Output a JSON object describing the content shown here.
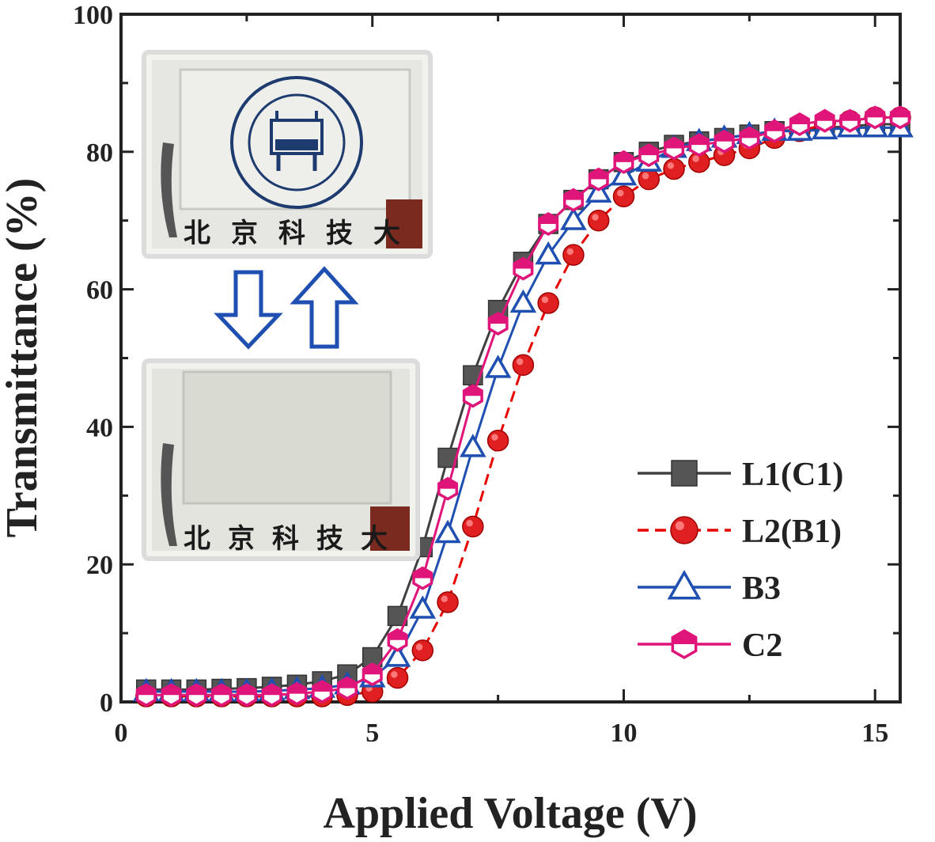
{
  "chart_data": {
    "type": "line",
    "xlabel": "Applied Voltage (V)",
    "ylabel": "Transmittance (%)",
    "xlim": [
      0,
      15.5
    ],
    "ylim": [
      0,
      100
    ],
    "xticks": [
      0,
      5,
      10,
      15
    ],
    "yticks": [
      0,
      20,
      40,
      60,
      80,
      100
    ],
    "legend_position": "bottom-right",
    "grid": false,
    "x": [
      0.5,
      1,
      1.5,
      2,
      2.5,
      3,
      3.5,
      4,
      4.5,
      5,
      5.5,
      6,
      6.5,
      7,
      7.5,
      8,
      8.5,
      9,
      9.5,
      10,
      10.5,
      11,
      11.5,
      12,
      12.5,
      13,
      13.5,
      14,
      14.5,
      15,
      15.5
    ],
    "series": [
      {
        "name": "L1(C1)",
        "color": "#404040",
        "marker": "square",
        "values": [
          1.8,
          1.8,
          1.8,
          1.9,
          2.0,
          2.2,
          2.5,
          3.0,
          4.0,
          6.5,
          12.5,
          22.5,
          35.5,
          47.5,
          57.0,
          64.0,
          69.5,
          73.0,
          76.0,
          78.5,
          80.0,
          81.0,
          81.5,
          82.0,
          82.5,
          83.0,
          83.2,
          83.5,
          83.7,
          84.0,
          84.0
        ]
      },
      {
        "name": "L2(B1)",
        "color": "#e60000",
        "marker": "circle",
        "values": [
          0.8,
          0.8,
          0.8,
          0.8,
          0.8,
          0.8,
          0.8,
          0.8,
          1.0,
          1.5,
          3.5,
          7.5,
          14.5,
          25.5,
          38.0,
          49.0,
          58.0,
          65.0,
          70.0,
          73.5,
          76.0,
          77.5,
          78.5,
          79.5,
          80.5,
          82.0,
          83.0,
          84.0,
          84.5,
          85.0,
          85.0
        ]
      },
      {
        "name": "B3",
        "color": "#1f4fb0",
        "marker": "triangle",
        "values": [
          1.5,
          1.5,
          1.5,
          1.5,
          1.5,
          1.6,
          1.8,
          2.0,
          2.5,
          3.5,
          6.5,
          13.5,
          24.5,
          37.0,
          48.5,
          58.0,
          65.0,
          70.0,
          74.0,
          76.5,
          78.5,
          80.5,
          81.5,
          82.0,
          82.5,
          83.0,
          83.0,
          83.2,
          83.5,
          83.5,
          83.5
        ]
      },
      {
        "name": "C2",
        "color": "#e0157a",
        "marker": "hexagon",
        "values": [
          1.0,
          1.0,
          1.0,
          1.0,
          1.0,
          1.0,
          1.2,
          1.5,
          2.0,
          4.0,
          9.0,
          18.0,
          31.0,
          44.5,
          55.0,
          63.0,
          69.5,
          73.0,
          76.0,
          78.5,
          79.5,
          80.5,
          81.0,
          81.5,
          82.0,
          83.0,
          84.0,
          84.5,
          84.5,
          85.0,
          85.0
        ]
      }
    ]
  },
  "inset": {
    "top_photo_caption": "北京科技大",
    "bottom_photo_caption": "北京科技大"
  }
}
